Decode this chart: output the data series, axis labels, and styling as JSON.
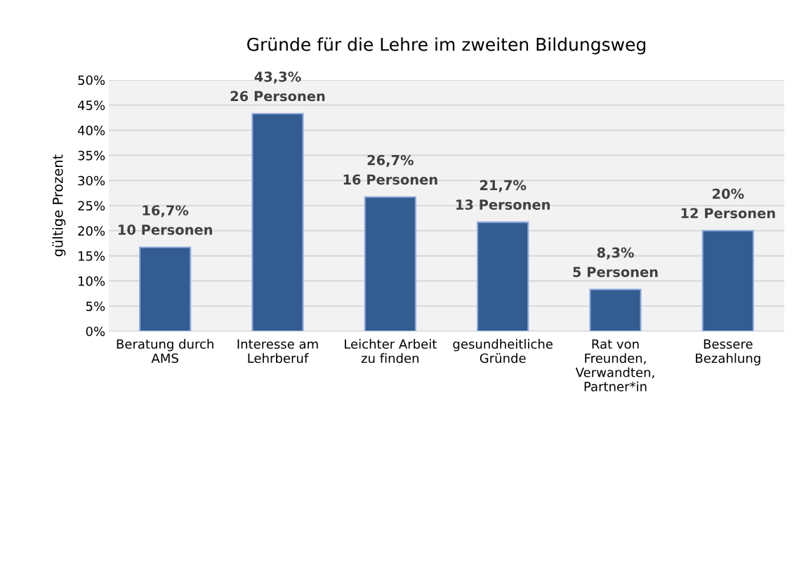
{
  "chart_data": {
    "type": "bar",
    "title": "Gründe für die Lehre im zweiten Bildungsweg",
    "ylabel": "gültige Prozent",
    "categories": [
      "Beratung durch\nAMS",
      "Interesse am\nLehrberuf",
      "Leichter Arbeit\nzu finden",
      "gesundheitliche\nGründe",
      "Rat von\nFreunden,\nVerwandten,\nPartner*in",
      "Bessere\nBezahlung"
    ],
    "values": [
      16.7,
      43.3,
      26.7,
      21.7,
      8.3,
      20
    ],
    "value_labels": [
      "16,7%\n10 Personen",
      "43,3%\n26 Personen",
      "26,7%\n16 Personen",
      "21,7%\n13 Personen",
      "8,3%\n5 Personen",
      "20%\n12 Personen"
    ],
    "color": "#335d91",
    "ylim": [
      0,
      50
    ],
    "yticks": [
      {
        "value": 0,
        "label": "0%"
      },
      {
        "value": 5,
        "label": "5%"
      },
      {
        "value": 10,
        "label": "10%"
      },
      {
        "value": 15,
        "label": "15%"
      },
      {
        "value": 20,
        "label": "20%"
      },
      {
        "value": 25,
        "label": "25%"
      },
      {
        "value": 30,
        "label": "30%"
      },
      {
        "value": 35,
        "label": "35%"
      },
      {
        "value": 40,
        "label": "40%"
      },
      {
        "value": 45,
        "label": "45%"
      },
      {
        "value": 50,
        "label": "50%"
      }
    ],
    "grid": "y",
    "legend": false
  }
}
